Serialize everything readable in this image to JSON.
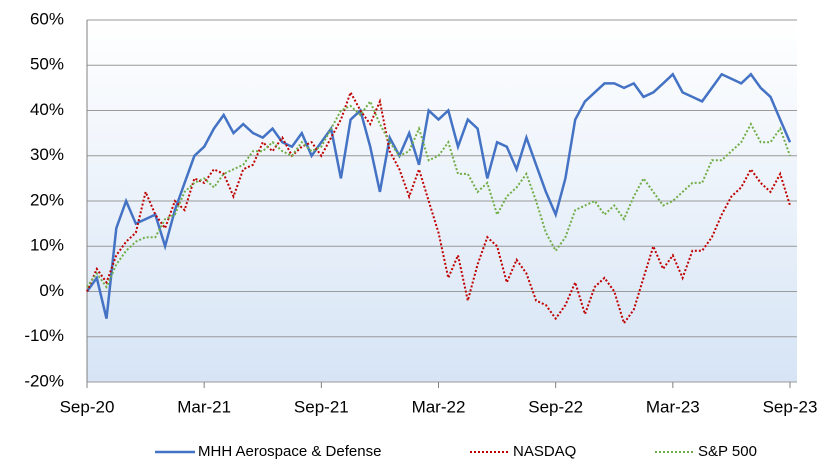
{
  "chart_data": {
    "type": "line",
    "categories": [
      "Sep-20",
      null,
      null,
      null,
      null,
      null,
      null,
      null,
      null,
      null,
      null,
      null,
      "Mar-21",
      null,
      null,
      null,
      null,
      null,
      null,
      null,
      null,
      null,
      null,
      null,
      "Sep-21",
      null,
      null,
      null,
      null,
      null,
      null,
      null,
      null,
      null,
      null,
      null,
      "Mar-22",
      null,
      null,
      null,
      null,
      null,
      null,
      null,
      null,
      null,
      null,
      null,
      "Sep-22",
      null,
      null,
      null,
      null,
      null,
      null,
      null,
      null,
      null,
      null,
      null,
      "Mar-23",
      null,
      null,
      null,
      null,
      null,
      null,
      null,
      null,
      null,
      null,
      null,
      "Sep-23"
    ],
    "series": [
      {
        "name": "MHH Aerospace & Defense",
        "color": "#4472c4",
        "dash": "solid",
        "values": [
          0,
          3,
          -6,
          14,
          20,
          15,
          16,
          17,
          10,
          18,
          24,
          30,
          32,
          36,
          39,
          35,
          37,
          35,
          34,
          36,
          33,
          32,
          35,
          30,
          33,
          36,
          25,
          38,
          40,
          32,
          22,
          34,
          30,
          35,
          28,
          40,
          38,
          40,
          32,
          38,
          36,
          25,
          33,
          32,
          27,
          34,
          28,
          22,
          17,
          25,
          38,
          42,
          44,
          46,
          46,
          45,
          46,
          43,
          44,
          46,
          48,
          44,
          43,
          42,
          45,
          48,
          47,
          46,
          48,
          45,
          43,
          38,
          33
        ]
      },
      {
        "name": "NASDAQ",
        "color": "#c00000",
        "dash": "dotted",
        "values": [
          0,
          5,
          2,
          8,
          11,
          13,
          22,
          17,
          14,
          20,
          18,
          25,
          24,
          27,
          26,
          21,
          27,
          28,
          33,
          31,
          34,
          30,
          32,
          33,
          30,
          34,
          38,
          44,
          40,
          37,
          42,
          31,
          27,
          21,
          27,
          20,
          13,
          3,
          8,
          -2,
          6,
          12,
          10,
          2,
          7,
          4,
          -2,
          -3,
          -6,
          -3,
          2,
          -5,
          1,
          3,
          0,
          -7,
          -4,
          3,
          10,
          5,
          8,
          3,
          9,
          9,
          12,
          17,
          21,
          23,
          27,
          24,
          22,
          26,
          19
        ]
      },
      {
        "name": "S&P 500",
        "color": "#70ad47",
        "dash": "dotted",
        "values": [
          1,
          4,
          1,
          6,
          9,
          11,
          12,
          12,
          16,
          17,
          22,
          24,
          25,
          23,
          26,
          27,
          28,
          31,
          31,
          33,
          31,
          30,
          33,
          31,
          32,
          36,
          40,
          41,
          39,
          42,
          37,
          33,
          30,
          31,
          36,
          29,
          30,
          33,
          26,
          26,
          22,
          24,
          17,
          21,
          23,
          26,
          20,
          13,
          9,
          12,
          18,
          19,
          20,
          17,
          19,
          16,
          21,
          25,
          22,
          19,
          20,
          22,
          24,
          24,
          29,
          29,
          31,
          33,
          37,
          33,
          33,
          36,
          30
        ]
      }
    ],
    "ylim": [
      -20,
      60
    ],
    "yticks": [
      {
        "value": -20,
        "label": "-20%"
      },
      {
        "value": -10,
        "label": "-10%"
      },
      {
        "value": 0,
        "label": "0%"
      },
      {
        "value": 10,
        "label": "10%"
      },
      {
        "value": 20,
        "label": "20%"
      },
      {
        "value": 30,
        "label": "30%"
      },
      {
        "value": 40,
        "label": "40%"
      },
      {
        "value": 50,
        "label": "50%"
      },
      {
        "value": 60,
        "label": "60%"
      }
    ],
    "grid": true,
    "legend": "bottom"
  }
}
